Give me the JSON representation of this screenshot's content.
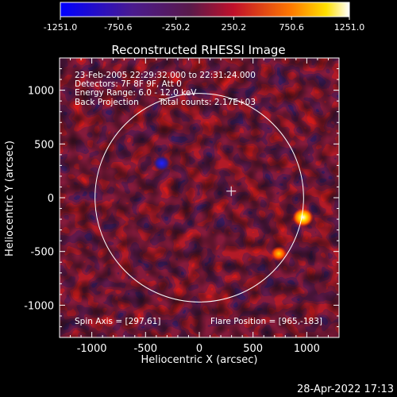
{
  "colorbar": {
    "ticks": [
      "-1251.0",
      "-750.6",
      "-250.2",
      "250.2",
      "750.6",
      "1251.0"
    ],
    "min": -1251.0,
    "max": 1251.0
  },
  "chart_data": {
    "type": "heatmap",
    "title": "Reconstructed RHESSI Image",
    "xlabel": "Heliocentric X (arcsec)",
    "ylabel": "Heliocentric Y (arcsec)",
    "xlim": [
      -1300,
      1300
    ],
    "ylim": [
      -1300,
      1300
    ],
    "x_ticks": [
      "-1000",
      "-500",
      "0",
      "500",
      "1000"
    ],
    "y_ticks": [
      "-1000",
      "-500",
      "0",
      "500",
      "1000"
    ],
    "annotations": [
      "23-Feb-2005 22:29:32.000 to 22:31:24.000",
      "Detectors: 7F 8F 9F, Att 0",
      "Energy Range: 6.0 - 12.0 keV",
      "Back Projection",
      "Total counts: 2.17E+03"
    ],
    "spin_axis_label": "Spin Axis = [297,61]",
    "flare_position_label": "Flare Position = [965,-183]",
    "spin_axis": [
      297,
      61
    ],
    "flare_position": [
      965,
      -183
    ],
    "solar_limb_radius_arcsec": 970,
    "bright_sources": [
      {
        "x": 965,
        "y": -183,
        "value": 1251.0
      },
      {
        "x": 740,
        "y": -520,
        "value": 900
      },
      {
        "x": -350,
        "y": 320,
        "value": -1100
      }
    ],
    "colors": {
      "low": "#2222ff",
      "mid": "#3a1a5a",
      "high": "#ff2020",
      "top": "#ffffff"
    }
  },
  "footer": {
    "date": "28-Apr-2022 17:13"
  }
}
